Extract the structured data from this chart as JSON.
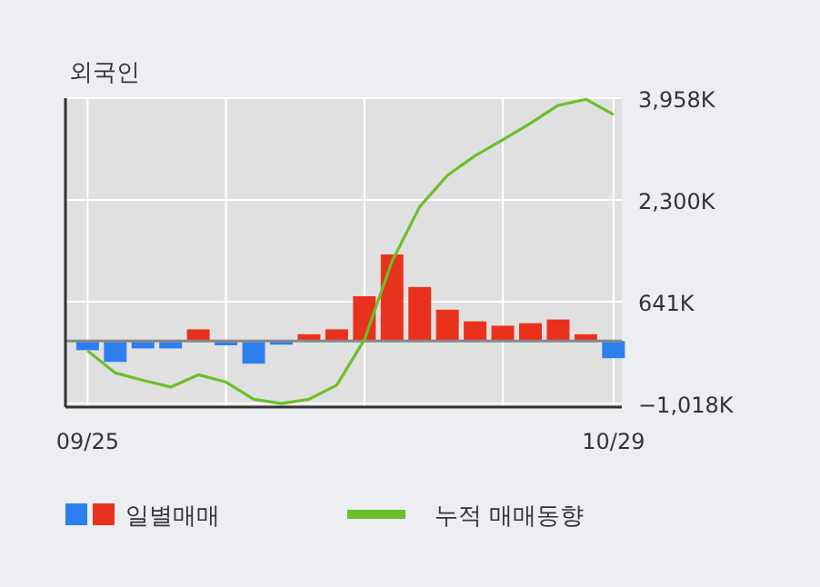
{
  "chart_data": {
    "type": "bar",
    "title": "외국인",
    "categories": [
      "09/25",
      null,
      null,
      null,
      null,
      null,
      null,
      null,
      null,
      null,
      null,
      null,
      null,
      null,
      null,
      null,
      null,
      null,
      null,
      "10/29"
    ],
    "series": [
      {
        "name": "일별매매",
        "colors": [
          "#2d7ff0",
          "#2d7ff0",
          "#2d7ff0",
          "#2d7ff0",
          "#e8321e",
          "#2d7ff0",
          "#2d7ff0",
          "#2d7ff0",
          "#e8321e",
          "#e8321e",
          "#e8321e",
          "#e8321e",
          "#e8321e",
          "#e8321e",
          "#e8321e",
          "#e8321e",
          "#e8321e",
          "#e8321e",
          "#e8321e",
          "#2d7ff0"
        ],
        "values": [
          -150,
          -340,
          -120,
          -120,
          190,
          -70,
          -370,
          -60,
          110,
          190,
          730,
          1410,
          880,
          510,
          320,
          250,
          290,
          350,
          110,
          -280
        ]
      },
      {
        "name": "누적 매매동향",
        "type": "line",
        "color": "#6cbf2a",
        "values": [
          -160,
          -520,
          -640,
          -750,
          -550,
          -670,
          -950,
          -1020,
          -950,
          -720,
          20,
          1300,
          2190,
          2700,
          3020,
          3280,
          3550,
          3840,
          3940,
          3690
        ]
      }
    ],
    "ylim": [
      -1077,
      3958
    ],
    "yticks": [
      {
        "value": 3958,
        "label": "3,958K"
      },
      {
        "value": 2300,
        "label": "2,300K"
      },
      {
        "value": 641,
        "label": "641K"
      },
      {
        "value": -1018,
        "label": "−1,018K"
      }
    ],
    "grid": true,
    "legend": "bottom"
  }
}
